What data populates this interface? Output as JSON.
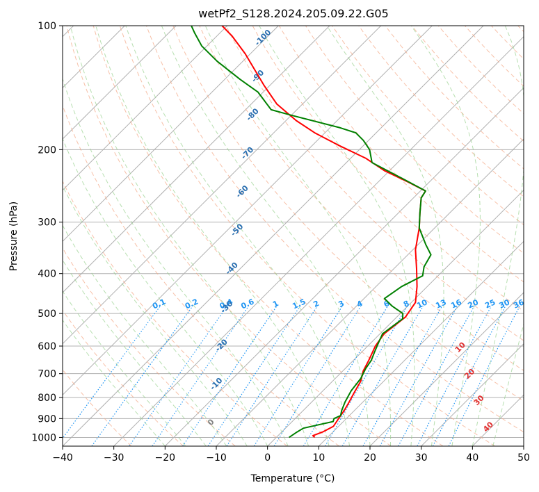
{
  "chart_data": {
    "type": "line",
    "title": "wetPf2_S128.2024.205.09.22.G05",
    "xlabel": "Temperature (°C)",
    "ylabel": "Pressure (hPa)",
    "xlim": [
      -40,
      50
    ],
    "ylim": [
      1050,
      100
    ],
    "y_scale": "log",
    "grid": true,
    "x_ticks": [
      -40,
      -30,
      -20,
      -10,
      0,
      10,
      20,
      30,
      40,
      50
    ],
    "x_tick_labels": [
      "−40",
      "−30",
      "−20",
      "−10",
      "0",
      "10",
      "20",
      "30",
      "40",
      "50"
    ],
    "y_ticks": [
      100,
      200,
      300,
      400,
      500,
      600,
      700,
      800,
      900,
      1000
    ],
    "y_tick_labels": [
      "100",
      "200",
      "300",
      "400",
      "500",
      "600",
      "700",
      "800",
      "900",
      "1000"
    ],
    "skew_deg": 45,
    "series": [
      {
        "color": "#ff0000",
        "points": [
          [
            7.5,
            1000
          ],
          [
            6.8,
            990
          ],
          [
            8,
            970
          ],
          [
            9,
            940
          ],
          [
            8.5,
            900
          ],
          [
            8,
            860
          ],
          [
            7.3,
            820
          ],
          [
            6.5,
            780
          ],
          [
            5.5,
            730
          ],
          [
            4,
            690
          ],
          [
            3,
            650
          ],
          [
            1.5,
            600
          ],
          [
            0.8,
            560
          ],
          [
            1.7,
            510
          ],
          [
            0.8,
            470
          ],
          [
            -2,
            430
          ],
          [
            -5.5,
            390
          ],
          [
            -9.5,
            350
          ],
          [
            -13,
            310
          ],
          [
            -15.8,
            285
          ],
          [
            -18.5,
            262
          ],
          [
            -19,
            252
          ],
          [
            -24,
            240
          ],
          [
            -31,
            225
          ],
          [
            -37,
            210
          ],
          [
            -45,
            195
          ],
          [
            -52,
            182
          ],
          [
            -58,
            170
          ],
          [
            -65,
            155
          ],
          [
            -71,
            140
          ],
          [
            -76,
            128
          ],
          [
            -81,
            117
          ],
          [
            -87,
            106
          ],
          [
            -91,
            100
          ]
        ]
      },
      {
        "color": "#008000",
        "points": [
          [
            2.5,
            1000
          ],
          [
            3,
            970
          ],
          [
            3.5,
            950
          ],
          [
            6,
            930
          ],
          [
            8,
            915
          ],
          [
            7.6,
            900
          ],
          [
            8.3,
            885
          ],
          [
            7.5,
            860
          ],
          [
            6.5,
            820
          ],
          [
            5.5,
            770
          ],
          [
            5,
            720
          ],
          [
            4,
            680
          ],
          [
            3.5,
            650
          ],
          [
            2.5,
            620
          ],
          [
            1.5,
            590
          ],
          [
            0.5,
            560
          ],
          [
            1.5,
            515
          ],
          [
            0.5,
            500
          ],
          [
            -3,
            480
          ],
          [
            -6,
            460
          ],
          [
            -5,
            430
          ],
          [
            -3,
            405
          ],
          [
            -4.5,
            385
          ],
          [
            -5.5,
            360
          ],
          [
            -8.5,
            340
          ],
          [
            -13,
            310
          ],
          [
            -15.8,
            285
          ],
          [
            -18.5,
            262
          ],
          [
            -19,
            252
          ],
          [
            -26,
            235
          ],
          [
            -35,
            215
          ],
          [
            -38,
            200
          ],
          [
            -41,
            190
          ],
          [
            -44,
            182
          ],
          [
            -48,
            177
          ],
          [
            -60,
            165
          ],
          [
            -65,
            160
          ],
          [
            -71,
            145
          ],
          [
            -77,
            135
          ],
          [
            -85,
            122
          ],
          [
            -91,
            112
          ],
          [
            -95,
            104
          ],
          [
            -97,
            100
          ]
        ]
      }
    ],
    "dry_adiabat_labels": [
      "10",
      "20",
      "30",
      "40"
    ],
    "moist_adiabat_labels": [
      "-100",
      "-90",
      "-80",
      "-70",
      "-60",
      "-50",
      "-40",
      "-30",
      "-20",
      "-10",
      "0"
    ],
    "mixing_ratio_labels": [
      "0.1",
      "0.2",
      "0.4",
      "0.6",
      "1",
      "1.5",
      "2",
      "3",
      "4",
      "6",
      "8",
      "10",
      "13",
      "16",
      "20",
      "25",
      "30",
      "36"
    ]
  }
}
